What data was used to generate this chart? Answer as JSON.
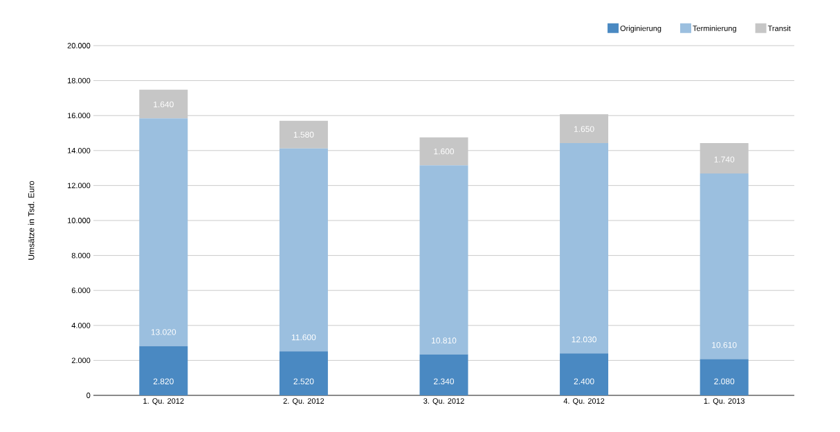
{
  "chart_data": {
    "type": "bar",
    "stacked": true,
    "ylabel": "Umsätze in Tsd. Euro",
    "categories": [
      "1. Qu. 2012",
      "2. Qu. 2012",
      "3. Qu. 2012",
      "4. Qu. 2012",
      "1. Qu. 2013"
    ],
    "series": [
      {
        "name": "Originierung",
        "color": "#4a89c2",
        "values": [
          2820,
          2520,
          2340,
          2400,
          2080
        ],
        "value_labels": [
          "2.820",
          "2.520",
          "2.340",
          "2.400",
          "2.080"
        ]
      },
      {
        "name": "Terminierung",
        "color": "#9bbfdf",
        "values": [
          13020,
          11600,
          10810,
          12030,
          10610
        ],
        "value_labels": [
          "13.020",
          "11.600",
          "10.810",
          "12.030",
          "10.610"
        ]
      },
      {
        "name": "Transit",
        "color": "#c6c6c6",
        "values": [
          1640,
          1580,
          1600,
          1650,
          1740
        ],
        "value_labels": [
          "1.640",
          "1.580",
          "1.600",
          "1.650",
          "1.740"
        ]
      }
    ],
    "ylim": [
      0,
      20000
    ],
    "yticks": [
      {
        "value": 0,
        "label": "0"
      },
      {
        "value": 2000,
        "label": "2.000"
      },
      {
        "value": 4000,
        "label": "4.000"
      },
      {
        "value": 6000,
        "label": "6.000"
      },
      {
        "value": 8000,
        "label": "8.000"
      },
      {
        "value": 10000,
        "label": "10.000"
      },
      {
        "value": 12000,
        "label": "12.000"
      },
      {
        "value": 14000,
        "label": "14.000"
      },
      {
        "value": 16000,
        "label": "16.000"
      },
      {
        "value": 18000,
        "label": "18.000"
      },
      {
        "value": 20000,
        "label": "20.000"
      }
    ],
    "grid": "y",
    "legend": "top right"
  }
}
